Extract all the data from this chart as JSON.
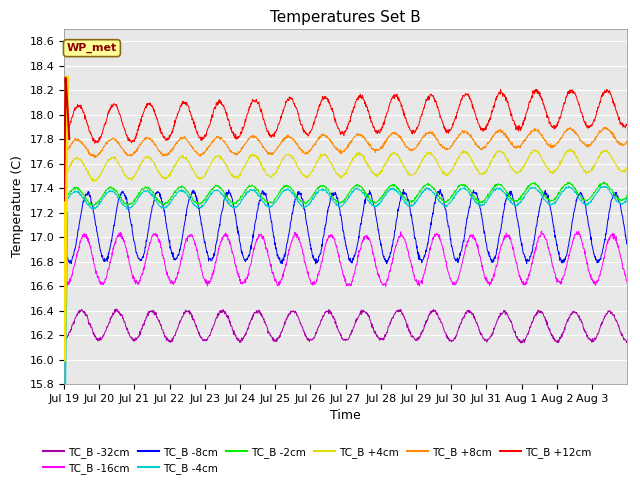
{
  "title": "Temperatures Set B",
  "xlabel": "Time",
  "ylabel": "Temperature (C)",
  "ylim": [
    15.8,
    18.7
  ],
  "xtick_labels": [
    "Jul 19",
    "Jul 20",
    "Jul 21",
    "Jul 22",
    "Jul 23",
    "Jul 24",
    "Jul 25",
    "Jul 26",
    "Jul 27",
    "Jul 28",
    "Jul 29",
    "Jul 30",
    "Jul 31",
    "Aug 1",
    "Aug 2",
    "Aug 3"
  ],
  "series": [
    {
      "label": "TC_B -32cm",
      "color": "#aa00aa",
      "base": 16.28,
      "amp": 0.12,
      "deep_amp": 0.0,
      "trend": 0.0
    },
    {
      "label": "TC_B -16cm",
      "color": "#ff00ff",
      "base": 16.82,
      "amp": 0.18,
      "deep_amp": 0.0,
      "trend": 0.0
    },
    {
      "label": "TC_B -8cm",
      "color": "#0000ff",
      "base": 17.1,
      "amp": 0.25,
      "deep_amp": 0.0,
      "trend": 0.0
    },
    {
      "label": "TC_B -4cm",
      "color": "#00cccc",
      "base": 17.3,
      "amp": 0.07,
      "deep_amp": 0.0,
      "trend": 0.003
    },
    {
      "label": "TC_B -2cm",
      "color": "#00ee00",
      "base": 17.35,
      "amp": 0.07,
      "deep_amp": 0.0,
      "trend": 0.003
    },
    {
      "label": "TC_B +4cm",
      "color": "#dddd00",
      "base": 17.55,
      "amp": 0.08,
      "deep_amp": 0.0,
      "trend": 0.005
    },
    {
      "label": "TC_B +8cm",
      "color": "#ff8800",
      "base": 17.75,
      "amp": 0.06,
      "deep_amp": 0.0,
      "trend": 0.006
    },
    {
      "label": "TC_B +12cm",
      "color": "#ff0000",
      "base": 17.95,
      "amp": 0.14,
      "deep_amp": 0.0,
      "trend": 0.008
    }
  ],
  "wp_met_label": "WP_met",
  "wp_met_color": "#990000",
  "wp_met_bg": "#ffff99",
  "background_color": "#e8e8e8",
  "grid_color": "#ffffff",
  "title_fontsize": 11,
  "axis_fontsize": 9,
  "tick_fontsize": 8
}
